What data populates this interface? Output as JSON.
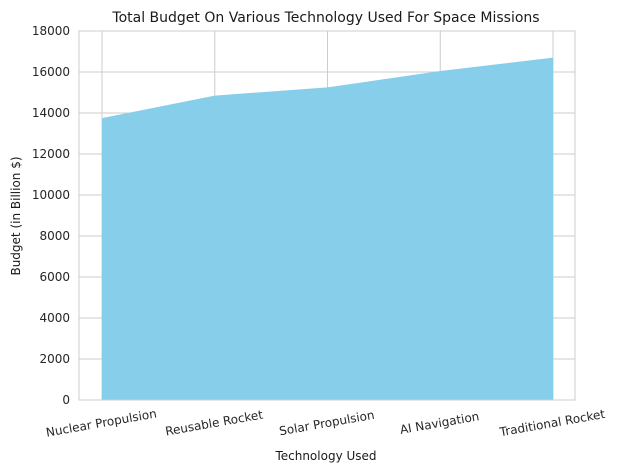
{
  "chart_data": {
    "type": "area",
    "title": "Total Budget On Various Technology Used For Space Missions",
    "xlabel": "Technology Used",
    "ylabel": "Budget (in Billion $)",
    "categories": [
      "Nuclear Propulsion",
      "Reusable Rocket",
      "Solar Propulsion",
      "AI Navigation",
      "Traditional Rocket"
    ],
    "values": [
      13750,
      14850,
      15250,
      16050,
      16700
    ],
    "ylim": [
      0,
      18000
    ],
    "yticks": [
      0,
      2000,
      4000,
      6000,
      8000,
      10000,
      12000,
      14000,
      16000,
      18000
    ],
    "grid": true,
    "fill_color": "#87ceeb",
    "tick_rotation_deg": 10
  }
}
